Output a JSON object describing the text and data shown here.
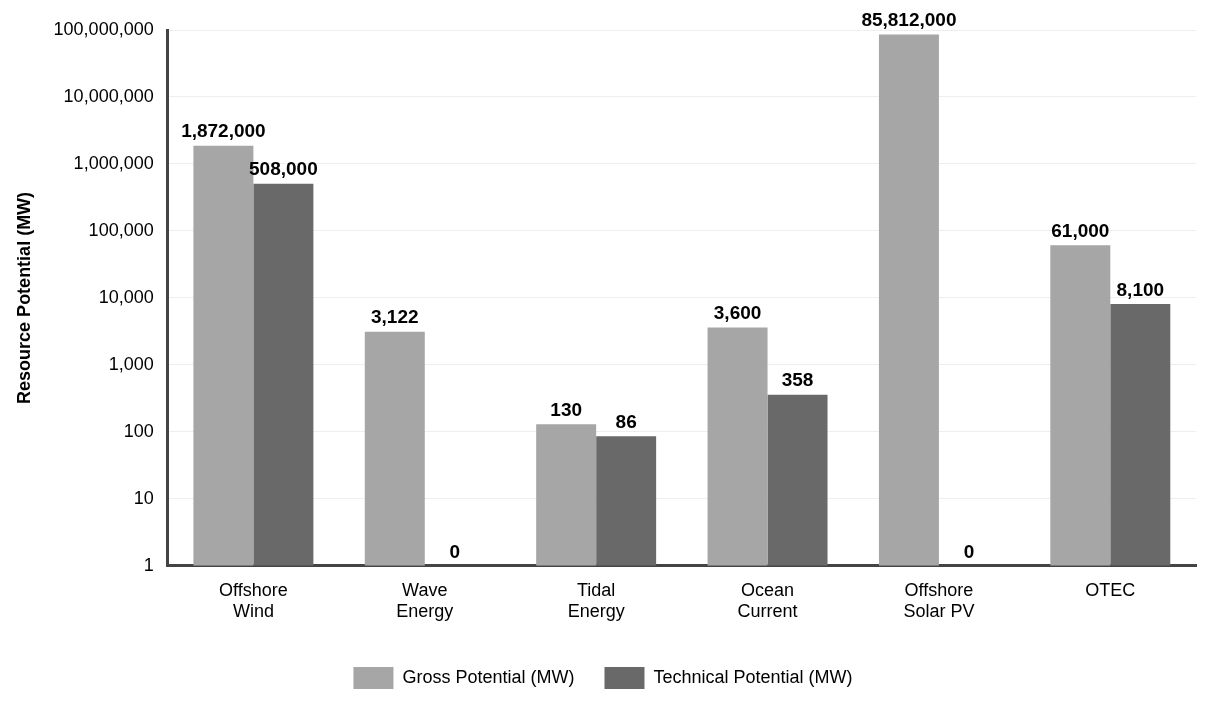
{
  "chart_data": {
    "type": "bar",
    "ylabel": "Resource Potential (MW)",
    "categories": [
      [
        "Offshore",
        "Wind"
      ],
      [
        "Wave",
        "Energy"
      ],
      [
        "Tidal",
        "Energy"
      ],
      [
        "Ocean",
        "Current"
      ],
      [
        "Offshore",
        "Solar PV"
      ],
      [
        "OTEC"
      ]
    ],
    "series": [
      {
        "name": "Gross Potential (MW)",
        "color": "#a6a6a6",
        "values": [
          1872000,
          3122,
          130,
          3600,
          85812000,
          61000
        ],
        "value_labels": [
          "1,872,000",
          "3,122",
          "130",
          "3,600",
          "85,812,000",
          "61,000"
        ]
      },
      {
        "name": "Technical Potential (MW)",
        "color": "#696969",
        "values": [
          508000,
          null,
          86,
          358,
          null,
          8100
        ],
        "value_labels": [
          "508,000",
          "0",
          "86",
          "358",
          "0",
          "8,100"
        ]
      }
    ],
    "log": "y",
    "ylim": [
      1,
      100000000
    ],
    "yticks": [
      1,
      10,
      100,
      {
        "value": 1000,
        "label": "1,000"
      },
      {
        "value": 10000,
        "label": "10,000"
      },
      {
        "value": 100000,
        "label": "100,000"
      },
      {
        "value": 1000000,
        "label": "1,000,000"
      },
      {
        "value": 10000000,
        "label": "10,000,000"
      },
      {
        "value": 100000000,
        "label": "100,000,000"
      }
    ],
    "grid": "y",
    "legend": "bottom"
  }
}
